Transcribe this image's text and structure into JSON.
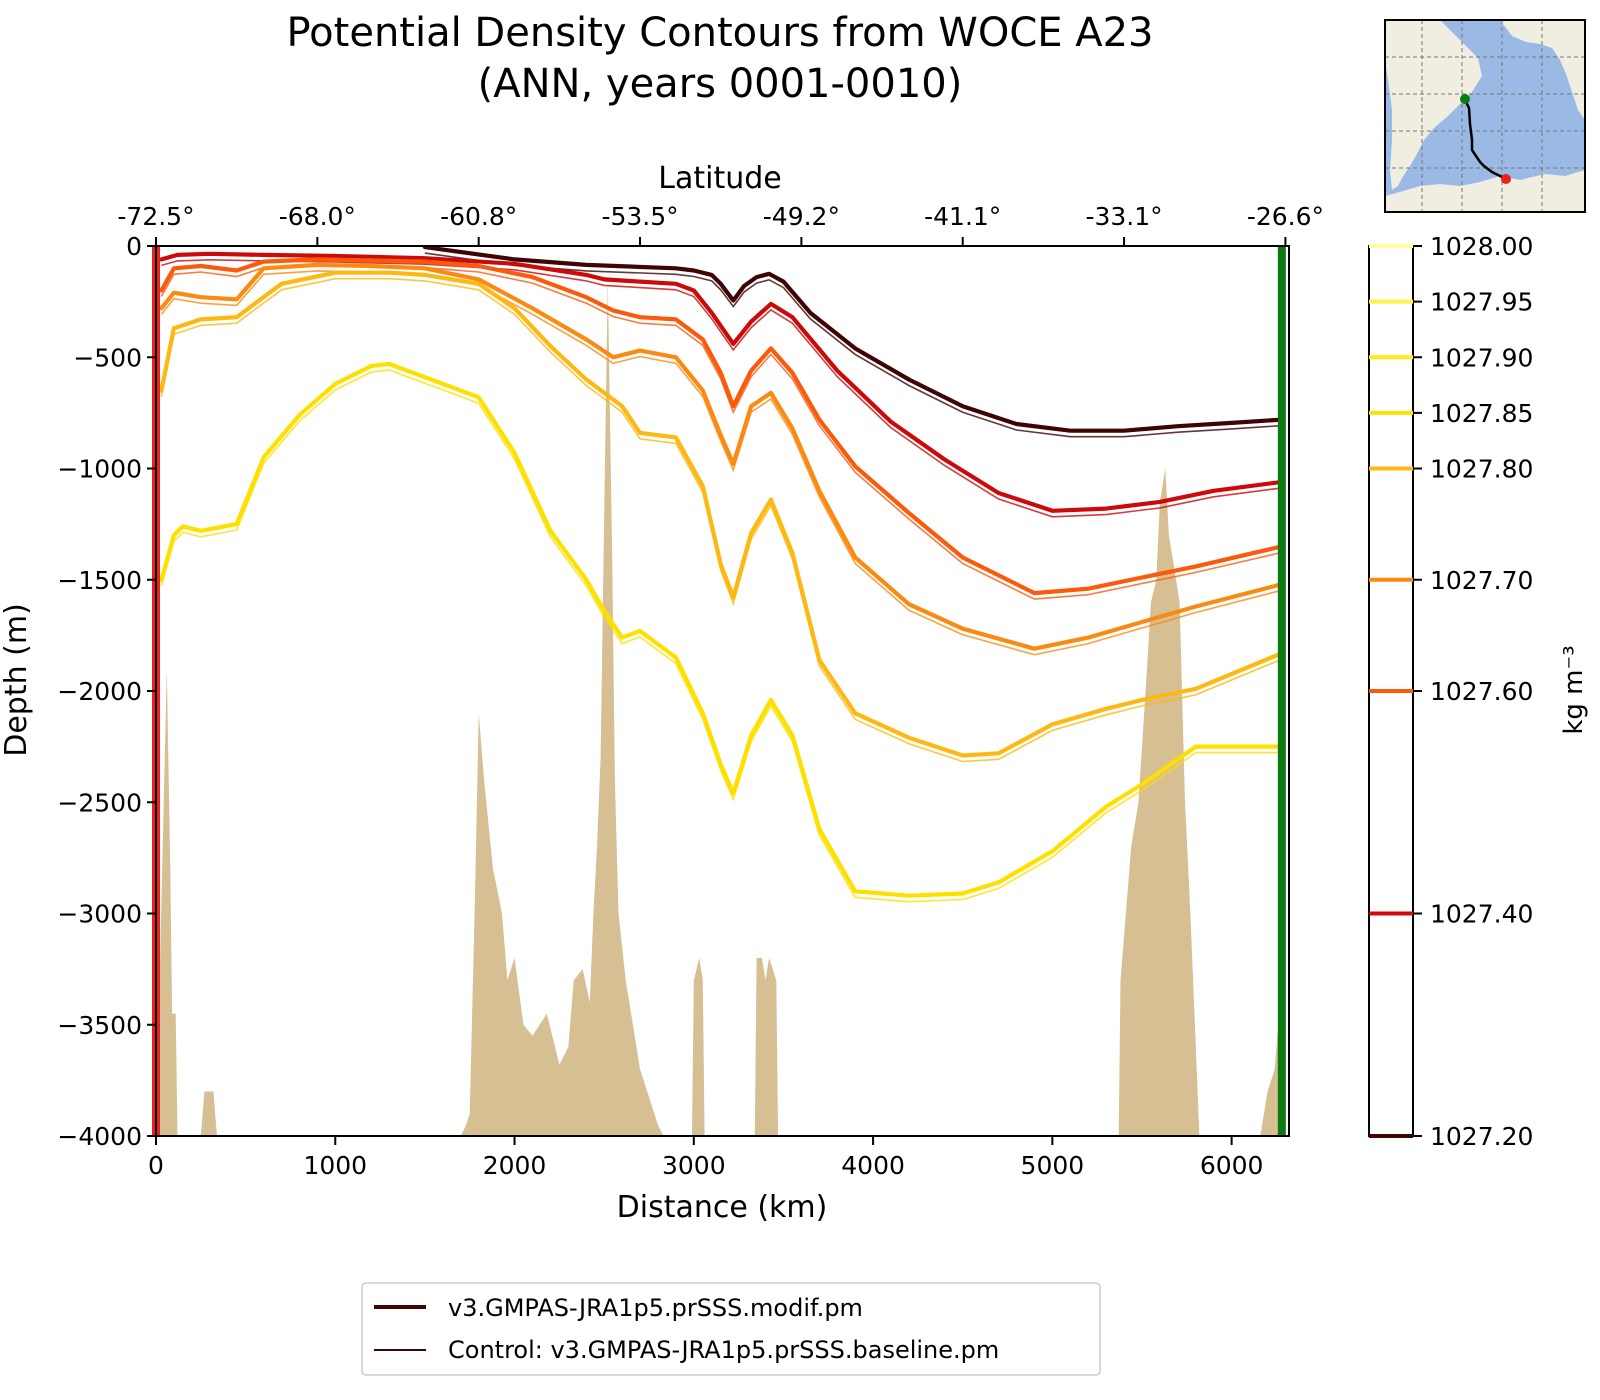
{
  "chart_data": {
    "type": "line",
    "title": "Potential Density Contours from WOCE A23",
    "subtitle": "(ANN, years 0001-0010)",
    "xlabel": "Distance (km)",
    "ylabel": "Depth (m)",
    "top_xlabel": "Latitude",
    "xlim": [
      0,
      6320
    ],
    "ylim": [
      -4000,
      0
    ],
    "x_ticks": [
      0,
      1000,
      2000,
      3000,
      4000,
      5000,
      6000
    ],
    "y_ticks": [
      0,
      -500,
      -1000,
      -1500,
      -2000,
      -2500,
      -3000,
      -3500,
      -4000
    ],
    "x_tick_labels": [
      "0",
      "1000",
      "2000",
      "3000",
      "4000",
      "5000",
      "6000"
    ],
    "y_tick_labels": [
      "0",
      "−500",
      "−1000",
      "−1500",
      "−2000",
      "−2500",
      "−3000",
      "−3500",
      "−4000"
    ],
    "lat_ticks": [
      {
        "dist": 0,
        "label": "-72.5°"
      },
      {
        "dist": 900,
        "label": "-68.0°"
      },
      {
        "dist": 1800,
        "label": "-60.8°"
      },
      {
        "dist": 2700,
        "label": "-53.5°"
      },
      {
        "dist": 3600,
        "label": "-49.2°"
      },
      {
        "dist": 4500,
        "label": "-41.1°"
      },
      {
        "dist": 5400,
        "label": "-33.1°"
      },
      {
        "dist": 6300,
        "label": "-26.6°"
      }
    ],
    "colorbar": {
      "label": "kg m⁻³",
      "range": [
        1027.2,
        1028.0
      ],
      "levels": [
        {
          "value": 1028.0,
          "label": "1028.00",
          "color": "#ffff9c"
        },
        {
          "value": 1027.95,
          "label": "1027.95",
          "color": "#fff24a"
        },
        {
          "value": 1027.9,
          "label": "1027.90",
          "color": "#ffea1a"
        },
        {
          "value": 1027.85,
          "label": "1027.85",
          "color": "#fde000"
        },
        {
          "value": 1027.8,
          "label": "1027.80",
          "color": "#fdb813"
        },
        {
          "value": 1027.7,
          "label": "1027.70",
          "color": "#fb8a12"
        },
        {
          "value": 1027.6,
          "label": "1027.60",
          "color": "#fa5a0c"
        },
        {
          "value": 1027.4,
          "label": "1027.40",
          "color": "#cc0a0a"
        },
        {
          "value": 1027.2,
          "label": "1027.20",
          "color": "#3f0404"
        }
      ]
    },
    "series": [
      {
        "name": "1027.20",
        "color": "#3f0404",
        "width": 4.2,
        "x": [
          1500,
          2000,
          2400,
          2900,
          3000,
          3100,
          3150,
          3220,
          3280,
          3350,
          3420,
          3500,
          3650,
          3900,
          4200,
          4500,
          4800,
          5100,
          5400,
          5700,
          6000,
          6280
        ],
        "y": [
          -5,
          -60,
          -85,
          -100,
          -110,
          -130,
          -170,
          -245,
          -180,
          -140,
          -125,
          -160,
          -300,
          -460,
          -600,
          -720,
          -800,
          -830,
          -830,
          -810,
          -795,
          -780
        ]
      },
      {
        "name": "1027.40",
        "color": "#cc0a0a",
        "width": 4.2,
        "x": [
          30,
          120,
          300,
          600,
          1000,
          1500,
          2000,
          2400,
          2500,
          2700,
          2900,
          3000,
          3100,
          3220,
          3320,
          3430,
          3550,
          3800,
          4100,
          4400,
          4700,
          5000,
          5300,
          5600,
          5900,
          6280
        ],
        "y": [
          -60,
          -40,
          -35,
          -40,
          -45,
          -55,
          -80,
          -130,
          -150,
          -160,
          -170,
          -200,
          -300,
          -440,
          -340,
          -260,
          -320,
          -560,
          -790,
          -960,
          -1110,
          -1190,
          -1180,
          -1150,
          -1100,
          -1060
        ]
      },
      {
        "name": "1027.60",
        "color": "#fa5a0c",
        "width": 4.2,
        "x": [
          30,
          100,
          250,
          450,
          600,
          900,
          1200,
          1500,
          1800,
          2100,
          2400,
          2550,
          2700,
          2900,
          3050,
          3150,
          3220,
          3320,
          3430,
          3550,
          3700,
          3900,
          4200,
          4500,
          4900,
          5200,
          5500,
          5800,
          6280
        ],
        "y": [
          -200,
          -100,
          -90,
          -110,
          -70,
          -60,
          -65,
          -70,
          -90,
          -140,
          -230,
          -290,
          -320,
          -330,
          -420,
          -570,
          -720,
          -560,
          -460,
          -570,
          -780,
          -990,
          -1200,
          -1400,
          -1560,
          -1540,
          -1490,
          -1440,
          -1350
        ]
      },
      {
        "name": "1027.70",
        "color": "#fb8a12",
        "width": 4.2,
        "x": [
          30,
          100,
          250,
          450,
          600,
          900,
          1200,
          1500,
          1800,
          2100,
          2400,
          2550,
          2700,
          2900,
          3050,
          3150,
          3220,
          3320,
          3430,
          3550,
          3700,
          3900,
          4200,
          4500,
          4900,
          5200,
          5500,
          5800,
          6280
        ],
        "y": [
          -280,
          -210,
          -230,
          -240,
          -100,
          -85,
          -90,
          -100,
          -150,
          -280,
          -420,
          -500,
          -470,
          -500,
          -650,
          -850,
          -980,
          -720,
          -660,
          -820,
          -1100,
          -1400,
          -1610,
          -1720,
          -1810,
          -1760,
          -1690,
          -1620,
          -1520
        ]
      },
      {
        "name": "1027.80",
        "color": "#fdb813",
        "width": 4.2,
        "x": [
          30,
          100,
          250,
          450,
          700,
          1000,
          1300,
          1500,
          1800,
          2000,
          2200,
          2400,
          2500,
          2600,
          2700,
          2900,
          3050,
          3150,
          3220,
          3320,
          3430,
          3550,
          3700,
          3900,
          4200,
          4500,
          4700,
          5000,
          5300,
          5500,
          5800,
          6280
        ],
        "y": [
          -650,
          -370,
          -330,
          -320,
          -170,
          -120,
          -120,
          -130,
          -170,
          -280,
          -450,
          -600,
          -660,
          -720,
          -840,
          -860,
          -1080,
          -1430,
          -1580,
          -1290,
          -1140,
          -1380,
          -1860,
          -2100,
          -2210,
          -2290,
          -2280,
          -2150,
          -2080,
          -2040,
          -1990,
          -1830
        ]
      },
      {
        "name": "1027.85",
        "color": "#fde000",
        "width": 4.2,
        "x": [
          30,
          100,
          150,
          250,
          450,
          600,
          800,
          1000,
          1200,
          1300,
          1400,
          1600,
          1800,
          2000,
          2200,
          2400,
          2500,
          2600,
          2700,
          2900,
          3050,
          3150,
          3220,
          3320,
          3430,
          3550,
          3700,
          3900,
          4200,
          4500,
          4700,
          5000,
          5300,
          5500,
          5800,
          6280
        ],
        "y": [
          -1500,
          -1300,
          -1260,
          -1280,
          -1250,
          -950,
          -760,
          -620,
          -540,
          -530,
          -560,
          -620,
          -680,
          -930,
          -1280,
          -1500,
          -1640,
          -1760,
          -1730,
          -1850,
          -2100,
          -2330,
          -2460,
          -2200,
          -2040,
          -2200,
          -2620,
          -2900,
          -2920,
          -2910,
          -2860,
          -2720,
          -2520,
          -2420,
          -2250,
          -2250
        ]
      }
    ],
    "bathymetry": {
      "color": "#d7bf94",
      "x": [
        0,
        60,
        80,
        90,
        110,
        120,
        250,
        270,
        320,
        340,
        1700,
        1730,
        1750,
        1780,
        1800,
        1830,
        1880,
        1930,
        1960,
        2000,
        2050,
        2100,
        2180,
        2250,
        2300,
        2330,
        2380,
        2420,
        2440,
        2460,
        2480,
        2500,
        2520,
        2545,
        2560,
        2580,
        2620,
        2660,
        2700,
        2760,
        2800,
        2830,
        2840,
        2990,
        3000,
        3030,
        3050,
        3060,
        3340,
        3350,
        3380,
        3400,
        3420,
        3460,
        3470,
        5370,
        5380,
        5440,
        5480,
        5520,
        5550,
        5580,
        5600,
        5630,
        5650,
        5680,
        5710,
        5740,
        5770,
        5800,
        5820,
        5830,
        6160,
        6200,
        6240,
        6270,
        6270,
        0
      ],
      "depth": [
        -4000,
        -1900,
        -2800,
        -3450,
        -3450,
        -4000,
        -4000,
        -3800,
        -3800,
        -4000,
        -4000,
        -3950,
        -3900,
        -2900,
        -2100,
        -2400,
        -2800,
        -3000,
        -3300,
        -3200,
        -3500,
        -3550,
        -3450,
        -3680,
        -3600,
        -3300,
        -3250,
        -3400,
        -3000,
        -2700,
        -2300,
        -1200,
        -150,
        -1400,
        -2400,
        -3000,
        -3300,
        -3500,
        -3700,
        -3850,
        -3950,
        -4000,
        -4000,
        -4000,
        -3300,
        -3200,
        -3300,
        -4000,
        -4000,
        -3200,
        -3200,
        -3300,
        -3200,
        -3300,
        -4000,
        -4000,
        -3300,
        -2700,
        -2500,
        -2000,
        -1600,
        -1500,
        -1150,
        -1000,
        -1300,
        -1450,
        -1600,
        -2500,
        -3000,
        -3600,
        -4000,
        -4000,
        -4000,
        -3800,
        -3700,
        -3400,
        -4000,
        -4000
      ]
    },
    "legend": [
      {
        "label": "v3.GMPAS-JRA1p5.prSSS.modif.pm",
        "color": "#3f0404",
        "width": 4
      },
      {
        "label": "Control: v3.GMPAS-JRA1p5.prSSS.baseline.pm",
        "color": "#3f0404",
        "width": 2
      }
    ],
    "section_start_color": "#e8231c",
    "section_end_color": "#0c7a12"
  },
  "inset_map": {
    "land_color": "#efeee0",
    "ocean_color": "#9ab9e4",
    "start_marker_color": "#0c7a12",
    "end_marker_color": "#e8231c"
  }
}
